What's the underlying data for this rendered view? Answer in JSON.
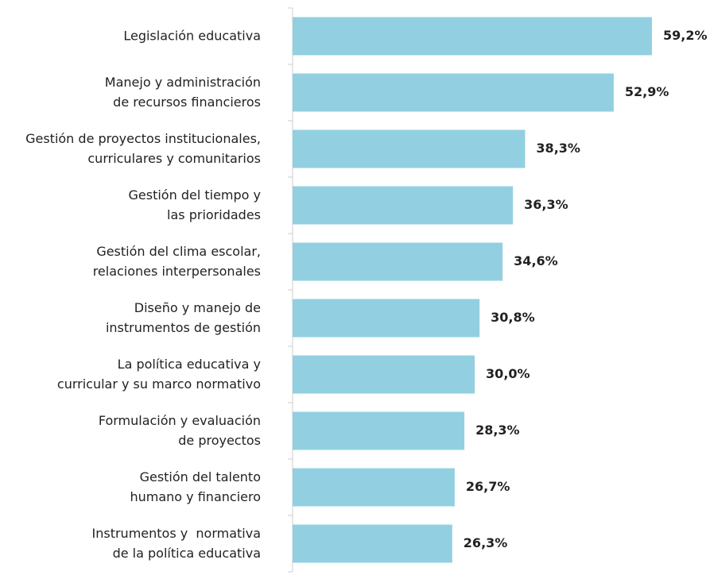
{
  "chart_data": {
    "type": "hbar",
    "categories": [
      [
        "Legislación educativa"
      ],
      [
        "Manejo y administración",
        "de recursos financieros"
      ],
      [
        "Gestión de proyectos institucionales,",
        "curriculares y comunitarios"
      ],
      [
        "Gestión del tiempo y",
        "las prioridades"
      ],
      [
        "Gestión del clima escolar,",
        "relaciones interpersonales"
      ],
      [
        "Diseño y manejo de",
        "instrumentos de gestión"
      ],
      [
        "La política educativa y",
        "curricular y su marco normativo"
      ],
      [
        "Formulación y evaluación",
        "de proyectos"
      ],
      [
        "Gestión del talento",
        "humano y financiero"
      ],
      [
        "Instrumentos y  normativa",
        "de la política educativa"
      ]
    ],
    "values": [
      59.2,
      52.9,
      38.3,
      36.3,
      34.6,
      30.8,
      30.0,
      28.3,
      26.7,
      26.3
    ],
    "value_labels": [
      "59,2%",
      "52,9%",
      "38,3%",
      "36,3%",
      "34,6%",
      "30,8%",
      "30,0%",
      "28,3%",
      "26,7%",
      "26,3%"
    ],
    "color": "#92d0e1"
  }
}
